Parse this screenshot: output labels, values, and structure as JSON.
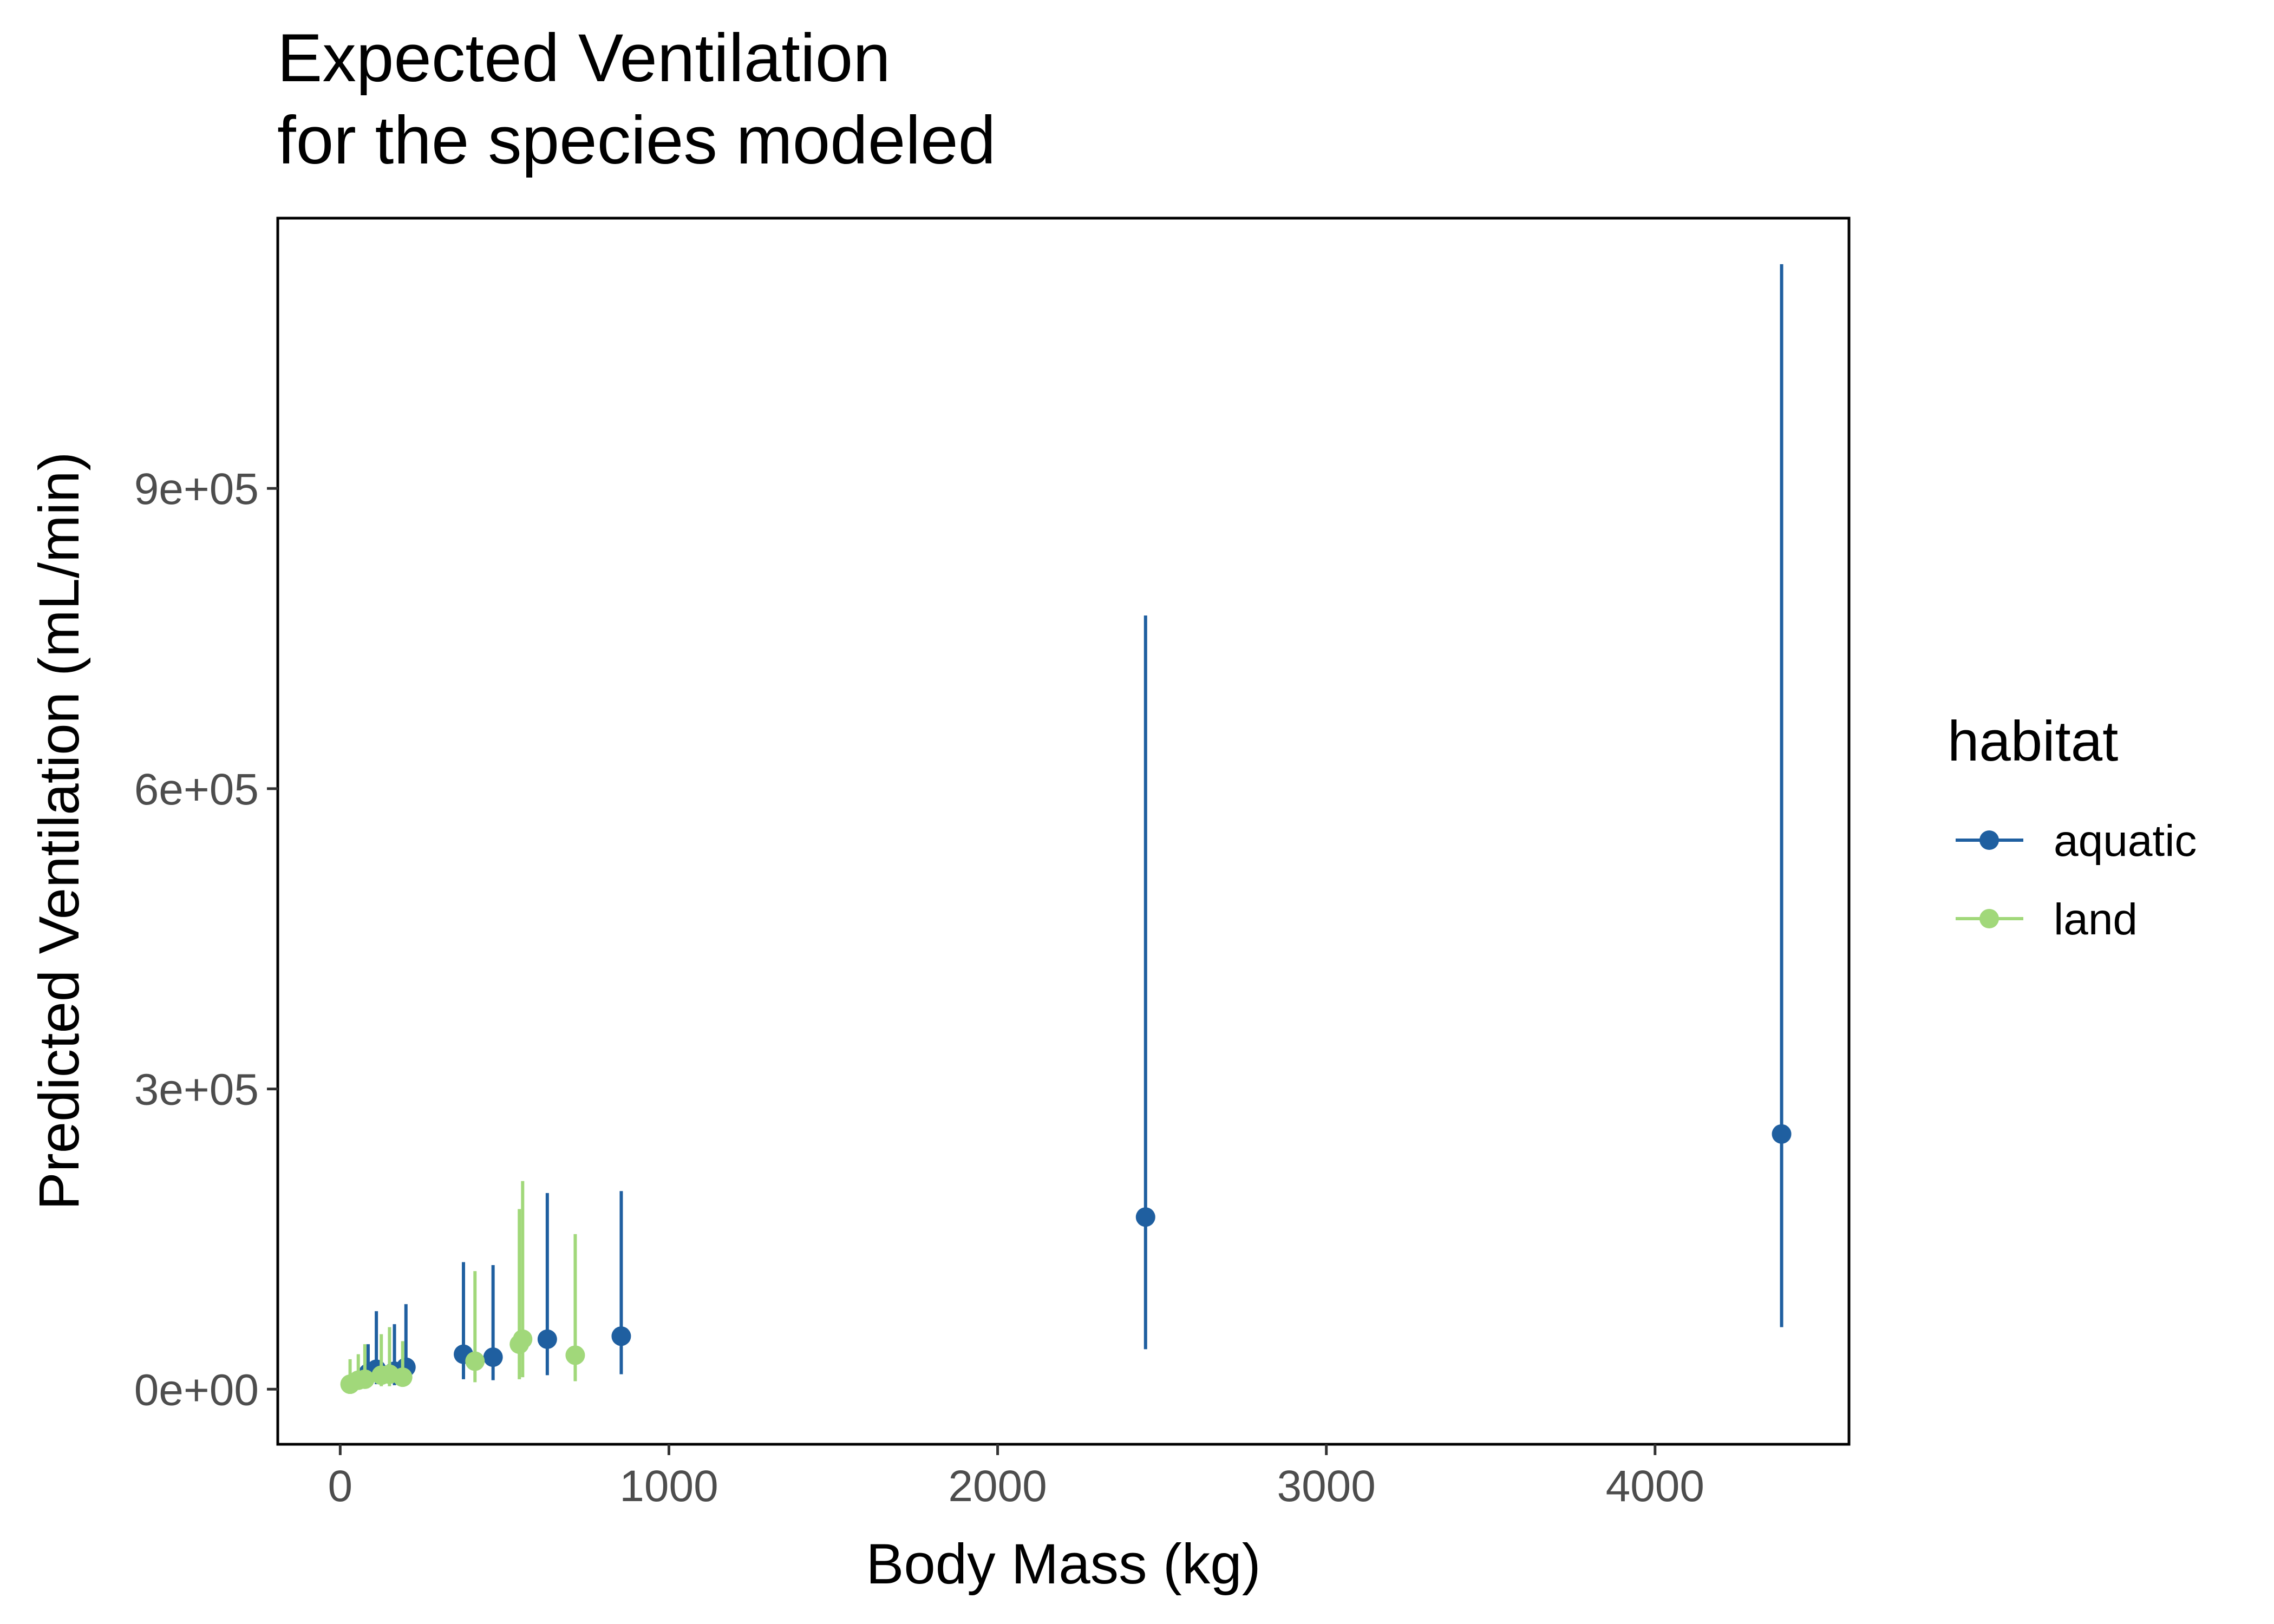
{
  "chart_data": {
    "type": "scatter",
    "title": "Expected Ventilation",
    "subtitle": "for the species modeled",
    "xlabel": "Body Mass (kg)",
    "ylabel": "Predicted Ventilation (mL/min)",
    "xlim": [
      -190,
      4590
    ],
    "ylim": [
      -55000,
      1170000
    ],
    "x_ticks": [
      {
        "value": 0,
        "label": "0"
      },
      {
        "value": 1000,
        "label": "1000"
      },
      {
        "value": 2000,
        "label": "2000"
      },
      {
        "value": 3000,
        "label": "3000"
      },
      {
        "value": 4000,
        "label": "4000"
      }
    ],
    "y_ticks": [
      {
        "value": 0,
        "label": "0e+00"
      },
      {
        "value": 300000,
        "label": "3e+05"
      },
      {
        "value": 600000,
        "label": "6e+05"
      },
      {
        "value": 900000,
        "label": "9e+05"
      }
    ],
    "grid": false,
    "legend": {
      "title": "habitat",
      "position": "right"
    },
    "series": [
      {
        "name": "aquatic",
        "color": "#1f5fa0",
        "points": [
          {
            "x": 85,
            "y": 16000,
            "lo": 4000,
            "hi": 45000
          },
          {
            "x": 110,
            "y": 20000,
            "lo": 5000,
            "hi": 78000
          },
          {
            "x": 165,
            "y": 18000,
            "lo": 4000,
            "hi": 65000
          },
          {
            "x": 200,
            "y": 22000,
            "lo": 5000,
            "hi": 85000
          },
          {
            "x": 375,
            "y": 35000,
            "lo": 10000,
            "hi": 127000
          },
          {
            "x": 465,
            "y": 32000,
            "lo": 9000,
            "hi": 124000
          },
          {
            "x": 630,
            "y": 50000,
            "lo": 14000,
            "hi": 196000
          },
          {
            "x": 855,
            "y": 53000,
            "lo": 15000,
            "hi": 198000
          },
          {
            "x": 2450,
            "y": 172000,
            "lo": 40000,
            "hi": 773000
          },
          {
            "x": 4385,
            "y": 255000,
            "lo": 62000,
            "hi": 1124000
          }
        ]
      },
      {
        "name": "land",
        "color": "#a1d87a",
        "points": [
          {
            "x": 30,
            "y": 5000,
            "lo": 1000,
            "hi": 30000
          },
          {
            "x": 55,
            "y": 9000,
            "lo": 2000,
            "hi": 35000
          },
          {
            "x": 75,
            "y": 10000,
            "lo": 2000,
            "hi": 45000
          },
          {
            "x": 125,
            "y": 14000,
            "lo": 3000,
            "hi": 55000
          },
          {
            "x": 150,
            "y": 15000,
            "lo": 3000,
            "hi": 62000
          },
          {
            "x": 190,
            "y": 12000,
            "lo": 3000,
            "hi": 48000
          },
          {
            "x": 410,
            "y": 28000,
            "lo": 7000,
            "hi": 118000
          },
          {
            "x": 545,
            "y": 45000,
            "lo": 10000,
            "hi": 180000
          },
          {
            "x": 555,
            "y": 50000,
            "lo": 12000,
            "hi": 208000
          },
          {
            "x": 715,
            "y": 34000,
            "lo": 8000,
            "hi": 155000
          }
        ]
      }
    ]
  }
}
